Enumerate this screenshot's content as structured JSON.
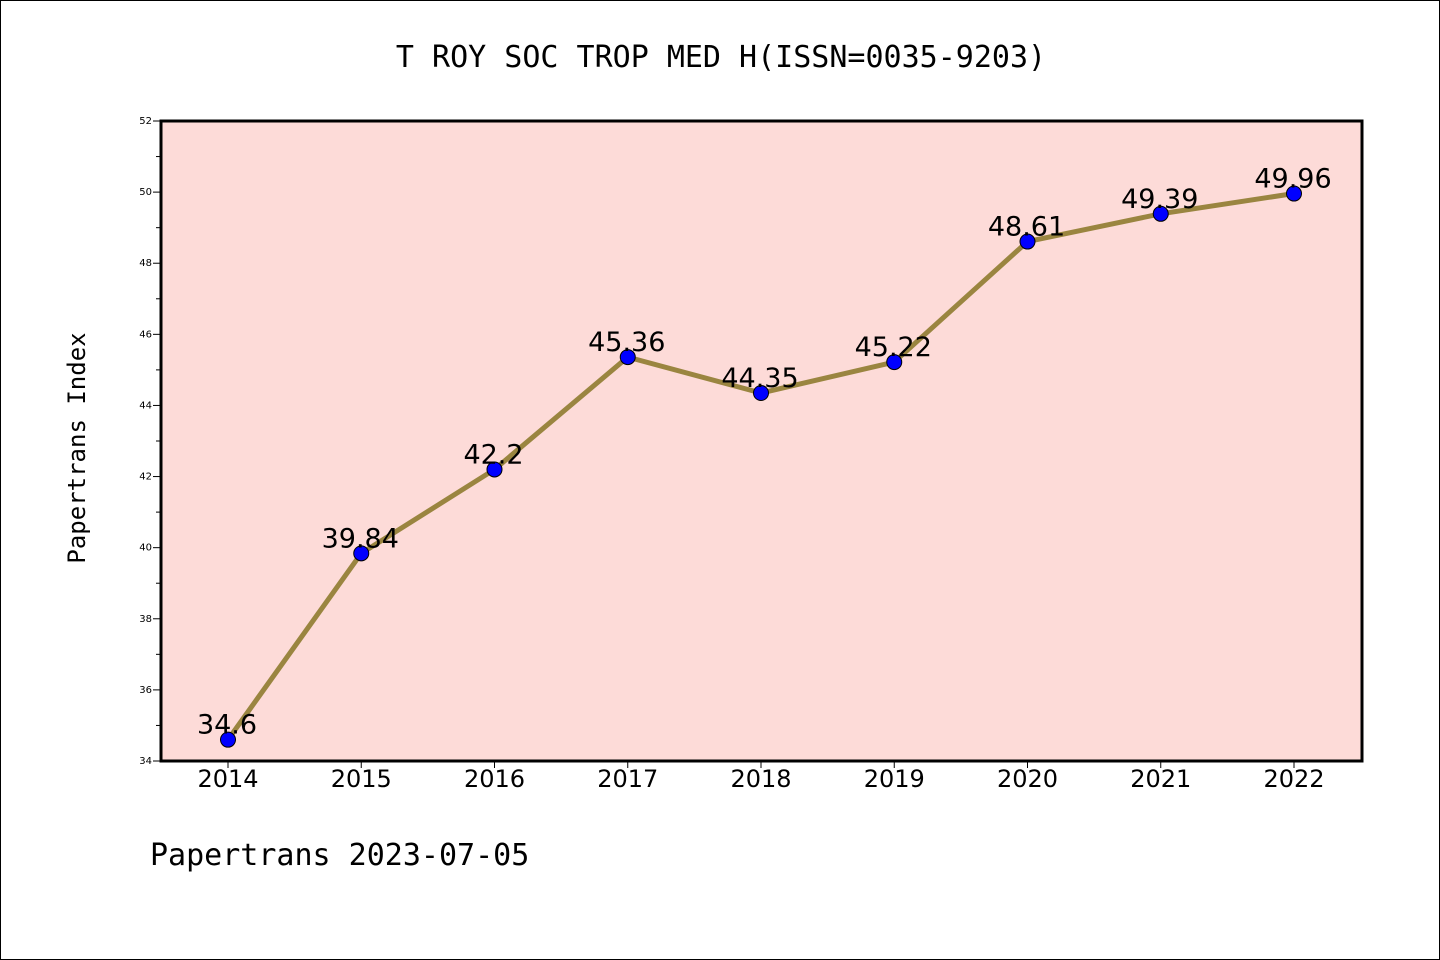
{
  "chart_data": {
    "type": "line",
    "title": "T ROY SOC TROP MED H(ISSN=0035-9203)",
    "ylabel": "Papertrans Index",
    "footer": "Papertrans 2023-07-05",
    "x": [
      "2014",
      "2015",
      "2016",
      "2017",
      "2018",
      "2019",
      "2020",
      "2021",
      "2022"
    ],
    "series": [
      {
        "values": [
          34.6,
          39.84,
          42.2,
          45.36,
          44.35,
          45.22,
          48.61,
          49.39,
          49.96
        ],
        "data_labels": [
          "34.6",
          "39.84",
          "42.2",
          "45.36",
          "44.35",
          "45.22",
          "48.61",
          "49.39",
          "49.96"
        ]
      }
    ],
    "ylim": [
      34,
      52
    ],
    "yticks": [
      "34",
      "36",
      "38",
      "40",
      "42",
      "44",
      "46",
      "48",
      "50",
      "52"
    ],
    "colors": {
      "plot_background": "#fddbd8",
      "line": "#9a8540",
      "marker": "#0000ff"
    },
    "grid": false,
    "legend": "none"
  }
}
